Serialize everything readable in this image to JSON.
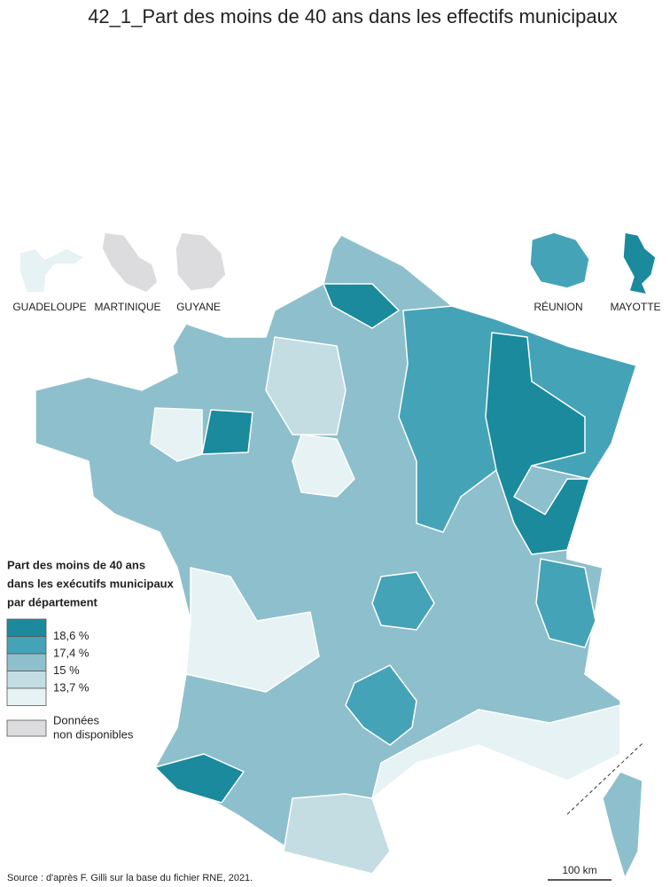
{
  "title": "42_1_Part des moins de 40 ans dans les effectifs municipaux",
  "overseas": [
    "GUADELOUPE",
    "MARTINIQUE",
    "GUYANE",
    "RÉUNION",
    "MAYOTTE"
  ],
  "legend": {
    "title": [
      "Part des moins de 40 ans",
      "dans les exécutifs municipaux",
      "par département"
    ],
    "colors": [
      "#1a8a9c",
      "#45a3b7",
      "#8ebfcc",
      "#c4dde3",
      "#e6f2f4"
    ],
    "labels": [
      "18,6 %",
      "17,4 %",
      "15 %",
      "13,7 %"
    ],
    "no_data": [
      "Données",
      "non disponibles"
    ],
    "no_data_color": "#dcdcdf"
  },
  "scale": "100 km",
  "source": "Source : d'après F. Gilli sur la base du fichier RNE, 2021."
}
